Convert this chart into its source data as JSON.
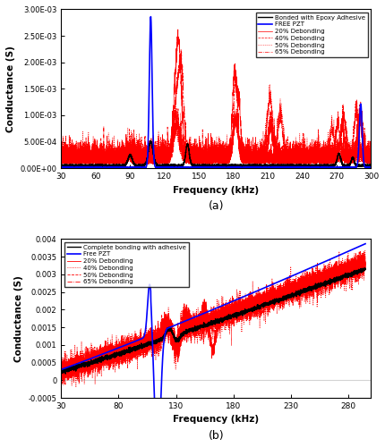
{
  "top": {
    "xlim": [
      30,
      300
    ],
    "ylim": [
      0,
      0.003
    ],
    "yticks": [
      0.0,
      0.0005,
      0.001,
      0.0015,
      0.002,
      0.0025,
      0.003
    ],
    "ytick_labels": [
      "0.00E+00",
      "5.00E-04",
      "1.00E-03",
      "1.50E-03",
      "2.00E-03",
      "2.50E-03",
      "3.00E-03"
    ],
    "xticks": [
      30,
      60,
      90,
      120,
      150,
      180,
      210,
      240,
      270,
      300
    ],
    "xlabel": "Frequency (kHz)",
    "ylabel": "Conductance (S)",
    "label_a": "(a)",
    "legend": [
      "Bonded with Epoxy Adhesive",
      "FREE PZT",
      "20% Debonding",
      "40% Debonding",
      "50% Debonding",
      "65% Debonding"
    ]
  },
  "bottom": {
    "xlim": [
      30,
      300
    ],
    "ylim": [
      -0.0005,
      0.004
    ],
    "yticks": [
      -0.0005,
      0,
      0.0005,
      0.001,
      0.0015,
      0.002,
      0.0025,
      0.003,
      0.0035,
      0.004
    ],
    "ytick_labels": [
      "-0.0005",
      "0",
      "0.0005",
      "0.001",
      "0.0015",
      "0.002",
      "0.0025",
      "0.003",
      "0.0035",
      "0.004"
    ],
    "xticks": [
      30,
      80,
      130,
      180,
      230,
      280
    ],
    "xlabel": "Frequency (kHz)",
    "ylabel": "Conductance (S)",
    "label_b": "(b)",
    "legend": [
      "Complete bonding with adhesive",
      "Free PZT",
      "20% Debonding",
      "40% Debonding",
      "50% Debonding",
      "65% Debonding"
    ]
  }
}
